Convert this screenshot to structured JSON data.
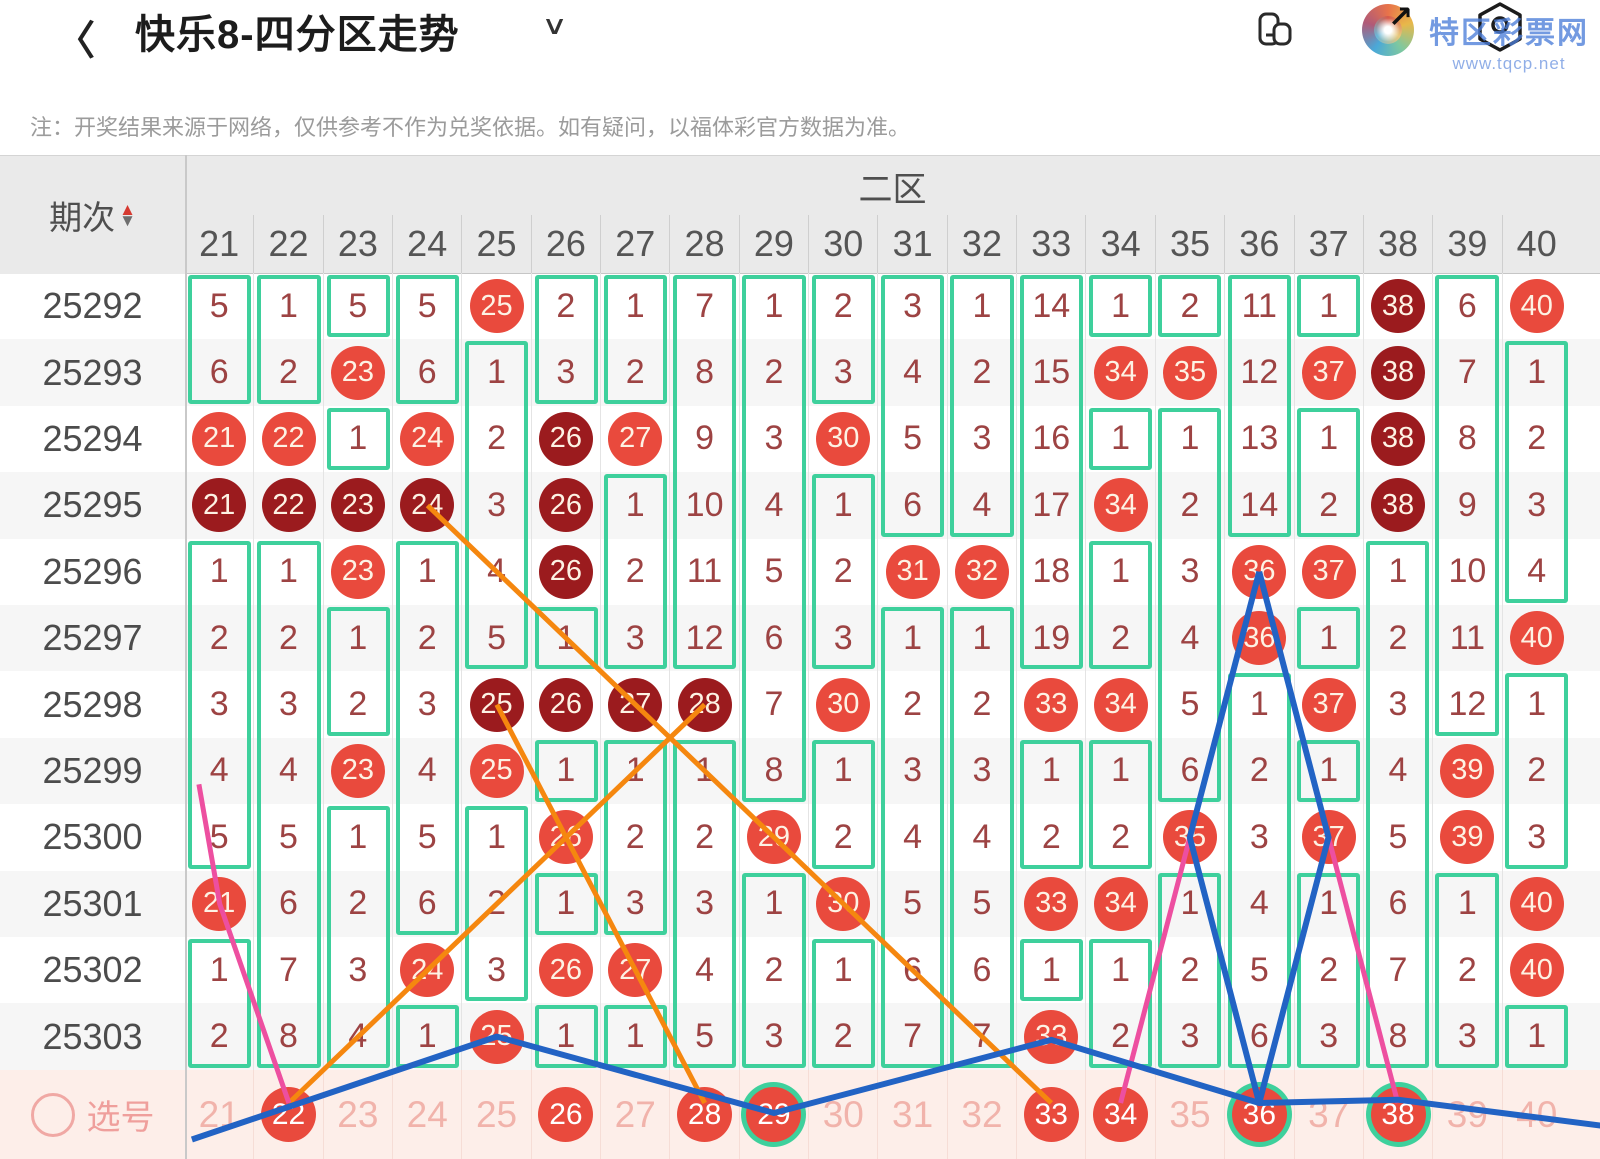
{
  "header": {
    "back": "〈",
    "title": "快乐8-四分区走势",
    "caret": "∨",
    "icons": [
      "copy-icon",
      "app-logo",
      "settings-hexagon"
    ]
  },
  "watermark": {
    "name": "特区彩票网",
    "url": "www.tqcp.net"
  },
  "note": "注：开奖结果来源于网络，仅供参考不作为兑奖依据。如有疑问，以福体彩官方数据为准。",
  "colors": {
    "ball_red": "#e94a3d",
    "ball_dark": "#9b1b1e",
    "green": "#3ed09c",
    "orange_line": "#f5870f",
    "blue_line": "#2263c4",
    "pink_line": "#ed4fa0",
    "miss_text": "#9d4343",
    "select_bg": "#fdeee9"
  },
  "table": {
    "period_label": "期次",
    "zone_label": "二区",
    "columns": [
      21,
      22,
      23,
      24,
      25,
      26,
      27,
      28,
      29,
      30,
      31,
      32,
      33,
      34,
      35,
      36,
      37,
      38,
      39,
      40
    ],
    "rows": [
      {
        "period": "25292",
        "cells": [
          [
            5,
            0
          ],
          [
            1,
            0
          ],
          [
            5,
            0
          ],
          [
            5,
            0
          ],
          [
            25,
            1
          ],
          [
            2,
            0
          ],
          [
            1,
            0
          ],
          [
            7,
            0
          ],
          [
            1,
            0
          ],
          [
            2,
            0
          ],
          [
            3,
            0
          ],
          [
            1,
            0
          ],
          [
            14,
            0
          ],
          [
            1,
            0
          ],
          [
            2,
            0
          ],
          [
            11,
            0
          ],
          [
            1,
            0
          ],
          [
            38,
            2
          ],
          [
            6,
            0
          ],
          [
            40,
            1
          ]
        ]
      },
      {
        "period": "25293",
        "cells": [
          [
            6,
            0
          ],
          [
            2,
            0
          ],
          [
            23,
            1
          ],
          [
            6,
            0
          ],
          [
            1,
            0
          ],
          [
            3,
            0
          ],
          [
            2,
            0
          ],
          [
            8,
            0
          ],
          [
            2,
            0
          ],
          [
            3,
            0
          ],
          [
            4,
            0
          ],
          [
            2,
            0
          ],
          [
            15,
            0
          ],
          [
            34,
            1
          ],
          [
            35,
            1
          ],
          [
            12,
            0
          ],
          [
            37,
            1
          ],
          [
            38,
            2
          ],
          [
            7,
            0
          ],
          [
            1,
            0
          ]
        ]
      },
      {
        "period": "25294",
        "cells": [
          [
            21,
            1
          ],
          [
            22,
            1
          ],
          [
            1,
            0
          ],
          [
            24,
            1
          ],
          [
            2,
            0
          ],
          [
            26,
            2
          ],
          [
            27,
            1
          ],
          [
            9,
            0
          ],
          [
            3,
            0
          ],
          [
            30,
            1
          ],
          [
            5,
            0
          ],
          [
            3,
            0
          ],
          [
            16,
            0
          ],
          [
            1,
            0
          ],
          [
            1,
            0
          ],
          [
            13,
            0
          ],
          [
            1,
            0
          ],
          [
            38,
            2
          ],
          [
            8,
            0
          ],
          [
            2,
            0
          ]
        ]
      },
      {
        "period": "25295",
        "cells": [
          [
            21,
            2
          ],
          [
            22,
            2
          ],
          [
            23,
            2
          ],
          [
            24,
            2
          ],
          [
            3,
            0
          ],
          [
            26,
            2
          ],
          [
            1,
            0
          ],
          [
            10,
            0
          ],
          [
            4,
            0
          ],
          [
            1,
            0
          ],
          [
            6,
            0
          ],
          [
            4,
            0
          ],
          [
            17,
            0
          ],
          [
            34,
            1
          ],
          [
            2,
            0
          ],
          [
            14,
            0
          ],
          [
            2,
            0
          ],
          [
            38,
            2
          ],
          [
            9,
            0
          ],
          [
            3,
            0
          ]
        ]
      },
      {
        "period": "25296",
        "cells": [
          [
            1,
            0
          ],
          [
            1,
            0
          ],
          [
            23,
            1
          ],
          [
            1,
            0
          ],
          [
            4,
            0
          ],
          [
            26,
            2
          ],
          [
            2,
            0
          ],
          [
            11,
            0
          ],
          [
            5,
            0
          ],
          [
            2,
            0
          ],
          [
            31,
            1
          ],
          [
            32,
            1
          ],
          [
            18,
            0
          ],
          [
            1,
            0
          ],
          [
            3,
            0
          ],
          [
            36,
            1
          ],
          [
            37,
            1
          ],
          [
            1,
            0
          ],
          [
            10,
            0
          ],
          [
            4,
            0
          ]
        ]
      },
      {
        "period": "25297",
        "cells": [
          [
            2,
            0
          ],
          [
            2,
            0
          ],
          [
            1,
            0
          ],
          [
            2,
            0
          ],
          [
            5,
            0
          ],
          [
            1,
            0
          ],
          [
            3,
            0
          ],
          [
            12,
            0
          ],
          [
            6,
            0
          ],
          [
            3,
            0
          ],
          [
            1,
            0
          ],
          [
            1,
            0
          ],
          [
            19,
            0
          ],
          [
            2,
            0
          ],
          [
            4,
            0
          ],
          [
            36,
            1
          ],
          [
            1,
            0
          ],
          [
            2,
            0
          ],
          [
            11,
            0
          ],
          [
            40,
            1
          ]
        ]
      },
      {
        "period": "25298",
        "cells": [
          [
            3,
            0
          ],
          [
            3,
            0
          ],
          [
            2,
            0
          ],
          [
            3,
            0
          ],
          [
            25,
            2
          ],
          [
            26,
            2
          ],
          [
            27,
            2
          ],
          [
            28,
            2
          ],
          [
            7,
            0
          ],
          [
            30,
            1
          ],
          [
            2,
            0
          ],
          [
            2,
            0
          ],
          [
            33,
            1
          ],
          [
            34,
            1
          ],
          [
            5,
            0
          ],
          [
            1,
            0
          ],
          [
            37,
            1
          ],
          [
            3,
            0
          ],
          [
            12,
            0
          ],
          [
            1,
            0
          ]
        ]
      },
      {
        "period": "25299",
        "cells": [
          [
            4,
            0
          ],
          [
            4,
            0
          ],
          [
            23,
            1
          ],
          [
            4,
            0
          ],
          [
            25,
            1
          ],
          [
            1,
            0
          ],
          [
            1,
            0
          ],
          [
            1,
            0
          ],
          [
            8,
            0
          ],
          [
            1,
            0
          ],
          [
            3,
            0
          ],
          [
            3,
            0
          ],
          [
            1,
            0
          ],
          [
            1,
            0
          ],
          [
            6,
            0
          ],
          [
            2,
            0
          ],
          [
            1,
            0
          ],
          [
            4,
            0
          ],
          [
            39,
            1
          ],
          [
            2,
            0
          ]
        ]
      },
      {
        "period": "25300",
        "cells": [
          [
            5,
            0
          ],
          [
            5,
            0
          ],
          [
            1,
            0
          ],
          [
            5,
            0
          ],
          [
            1,
            0
          ],
          [
            26,
            1
          ],
          [
            2,
            0
          ],
          [
            2,
            0
          ],
          [
            29,
            1
          ],
          [
            2,
            0
          ],
          [
            4,
            0
          ],
          [
            4,
            0
          ],
          [
            2,
            0
          ],
          [
            2,
            0
          ],
          [
            35,
            1
          ],
          [
            3,
            0
          ],
          [
            37,
            1
          ],
          [
            5,
            0
          ],
          [
            39,
            1
          ],
          [
            3,
            0
          ]
        ]
      },
      {
        "period": "25301",
        "cells": [
          [
            21,
            1
          ],
          [
            6,
            0
          ],
          [
            2,
            0
          ],
          [
            6,
            0
          ],
          [
            2,
            0
          ],
          [
            1,
            0
          ],
          [
            3,
            0
          ],
          [
            3,
            0
          ],
          [
            1,
            0
          ],
          [
            30,
            1
          ],
          [
            5,
            0
          ],
          [
            5,
            0
          ],
          [
            33,
            1
          ],
          [
            34,
            1
          ],
          [
            1,
            0
          ],
          [
            4,
            0
          ],
          [
            1,
            0
          ],
          [
            6,
            0
          ],
          [
            1,
            0
          ],
          [
            40,
            1
          ]
        ]
      },
      {
        "period": "25302",
        "cells": [
          [
            1,
            0
          ],
          [
            7,
            0
          ],
          [
            3,
            0
          ],
          [
            24,
            1
          ],
          [
            3,
            0
          ],
          [
            26,
            1
          ],
          [
            27,
            1
          ],
          [
            4,
            0
          ],
          [
            2,
            0
          ],
          [
            1,
            0
          ],
          [
            6,
            0
          ],
          [
            6,
            0
          ],
          [
            1,
            0
          ],
          [
            1,
            0
          ],
          [
            2,
            0
          ],
          [
            5,
            0
          ],
          [
            2,
            0
          ],
          [
            7,
            0
          ],
          [
            2,
            0
          ],
          [
            40,
            1
          ]
        ]
      },
      {
        "period": "25303",
        "cells": [
          [
            2,
            0
          ],
          [
            8,
            0
          ],
          [
            4,
            0
          ],
          [
            1,
            0
          ],
          [
            25,
            1
          ],
          [
            1,
            0
          ],
          [
            1,
            0
          ],
          [
            5,
            0
          ],
          [
            3,
            0
          ],
          [
            2,
            0
          ],
          [
            7,
            0
          ],
          [
            7,
            0
          ],
          [
            33,
            1
          ],
          [
            2,
            0
          ],
          [
            3,
            0
          ],
          [
            6,
            0
          ],
          [
            3,
            0
          ],
          [
            8,
            0
          ],
          [
            3,
            0
          ],
          [
            1,
            0
          ]
        ]
      }
    ]
  },
  "select_row": {
    "label": "选号",
    "items": [
      {
        "n": 21,
        "s": "plain"
      },
      {
        "n": 22,
        "s": "hit"
      },
      {
        "n": 23,
        "s": "plain"
      },
      {
        "n": 24,
        "s": "plain"
      },
      {
        "n": 25,
        "s": "plain"
      },
      {
        "n": 26,
        "s": "hit"
      },
      {
        "n": 27,
        "s": "plain"
      },
      {
        "n": 28,
        "s": "hit"
      },
      {
        "n": 29,
        "s": "hit-ring"
      },
      {
        "n": 30,
        "s": "plain"
      },
      {
        "n": 31,
        "s": "plain"
      },
      {
        "n": 32,
        "s": "plain"
      },
      {
        "n": 33,
        "s": "hit"
      },
      {
        "n": 34,
        "s": "hit"
      },
      {
        "n": 35,
        "s": "plain"
      },
      {
        "n": 36,
        "s": "hit-ring"
      },
      {
        "n": 37,
        "s": "plain"
      },
      {
        "n": 38,
        "s": "hit-ring"
      },
      {
        "n": 39,
        "s": "plain"
      },
      {
        "n": 40,
        "s": "plain"
      }
    ]
  },
  "trend_lines": [
    {
      "color": "#f5870f",
      "w": 5,
      "points": [
        [
          24,
          3
        ],
        [
          33,
          12
        ]
      ]
    },
    {
      "color": "#f5870f",
      "w": 5,
      "points": [
        [
          25,
          6
        ],
        [
          28,
          12
        ]
      ]
    },
    {
      "color": "#f5870f",
      "w": 5,
      "points": [
        [
          28,
          6
        ],
        [
          22,
          12
        ]
      ]
    },
    {
      "color": "#ed4fa0",
      "w": 5,
      "points": [
        [
          20.7,
          7.2
        ],
        [
          21,
          9
        ],
        [
          22,
          12
        ]
      ]
    },
    {
      "color": "#ed4fa0",
      "w": 5,
      "points": [
        [
          35,
          8
        ],
        [
          34,
          12
        ]
      ]
    },
    {
      "color": "#ed4fa0",
      "w": 5,
      "points": [
        [
          37,
          8
        ],
        [
          38,
          12
        ]
      ]
    },
    {
      "color": "#2263c4",
      "w": 6,
      "points": [
        [
          36,
          4
        ],
        [
          35,
          8
        ],
        [
          36,
          12
        ]
      ]
    },
    {
      "color": "#2263c4",
      "w": 6,
      "points": [
        [
          36,
          4
        ],
        [
          37,
          8
        ],
        [
          36,
          12
        ]
      ]
    },
    {
      "color": "#2263c4",
      "w": 6,
      "points": [
        [
          20.6,
          12.55
        ],
        [
          25,
          11
        ],
        [
          29,
          12.15
        ],
        [
          33,
          11.05
        ],
        [
          36,
          12
        ],
        [
          38,
          11.95
        ],
        [
          41,
          12.35
        ]
      ]
    }
  ]
}
